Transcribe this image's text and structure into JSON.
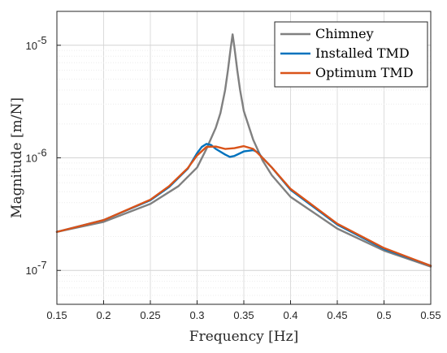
{
  "chart_data": {
    "type": "line",
    "xlabel": "Frequency [Hz]",
    "ylabel": "Magnitude [m/N]",
    "xlim": [
      0.15,
      0.55
    ],
    "ylim": [
      5e-08,
      2e-05
    ],
    "yscale": "log",
    "grid": true,
    "legend_position": "top-right",
    "x_ticks": [
      "0.15",
      "0.2",
      "0.25",
      "0.3",
      "0.35",
      "0.4",
      "0.45",
      "0.5",
      "0.55"
    ],
    "y_ticks": [
      {
        "base": "10",
        "exp": "-7",
        "value": 1e-07
      },
      {
        "base": "10",
        "exp": "-6",
        "value": 1e-06
      },
      {
        "base": "10",
        "exp": "-5",
        "value": 1e-05
      }
    ],
    "series": [
      {
        "name": "Chimney",
        "color": "#808080",
        "x": [
          0.15,
          0.2,
          0.25,
          0.28,
          0.3,
          0.31,
          0.32,
          0.325,
          0.33,
          0.333,
          0.336,
          0.338,
          0.34,
          0.343,
          0.346,
          0.35,
          0.36,
          0.37,
          0.38,
          0.4,
          0.45,
          0.5,
          0.55
        ],
        "y": [
          2.2e-07,
          2.7e-07,
          3.9e-07,
          5.6e-07,
          8.2e-07,
          1.2e-06,
          1.85e-06,
          2.5e-06,
          4e-06,
          6e-06,
          9.5e-06,
          1.25e-05,
          9.5e-06,
          6e-06,
          4e-06,
          2.6e-06,
          1.45e-06,
          9.5e-07,
          7e-07,
          4.5e-07,
          2.35e-07,
          1.5e-07,
          1.08e-07
        ]
      },
      {
        "name": "Installed TMD",
        "color": "#0072BD",
        "x": [
          0.15,
          0.2,
          0.25,
          0.27,
          0.29,
          0.3,
          0.305,
          0.31,
          0.315,
          0.32,
          0.33,
          0.335,
          0.34,
          0.35,
          0.36,
          0.365,
          0.37,
          0.38,
          0.4,
          0.45,
          0.5,
          0.55
        ],
        "y": [
          2.2e-07,
          2.8e-07,
          4.2e-07,
          5.5e-07,
          8e-07,
          1.1e-06,
          1.25e-06,
          1.33e-06,
          1.3e-06,
          1.2e-06,
          1.07e-06,
          1.02e-06,
          1.04e-06,
          1.14e-06,
          1.17e-06,
          1.12e-06,
          1e-06,
          8.2e-07,
          5.2e-07,
          2.55e-07,
          1.55e-07,
          1.1e-07
        ]
      },
      {
        "name": "Optimum TMD",
        "color": "#D95319",
        "x": [
          0.15,
          0.2,
          0.25,
          0.27,
          0.29,
          0.3,
          0.31,
          0.32,
          0.33,
          0.34,
          0.35,
          0.36,
          0.365,
          0.37,
          0.38,
          0.4,
          0.45,
          0.5,
          0.55
        ],
        "y": [
          2.2e-07,
          2.8e-07,
          4.25e-07,
          5.6e-07,
          8.1e-07,
          1.05e-06,
          1.25e-06,
          1.26e-06,
          1.2e-06,
          1.22e-06,
          1.27e-06,
          1.2e-06,
          1.1e-06,
          1e-06,
          8.2e-07,
          5.3e-07,
          2.6e-07,
          1.58e-07,
          1.1e-07
        ]
      }
    ]
  }
}
